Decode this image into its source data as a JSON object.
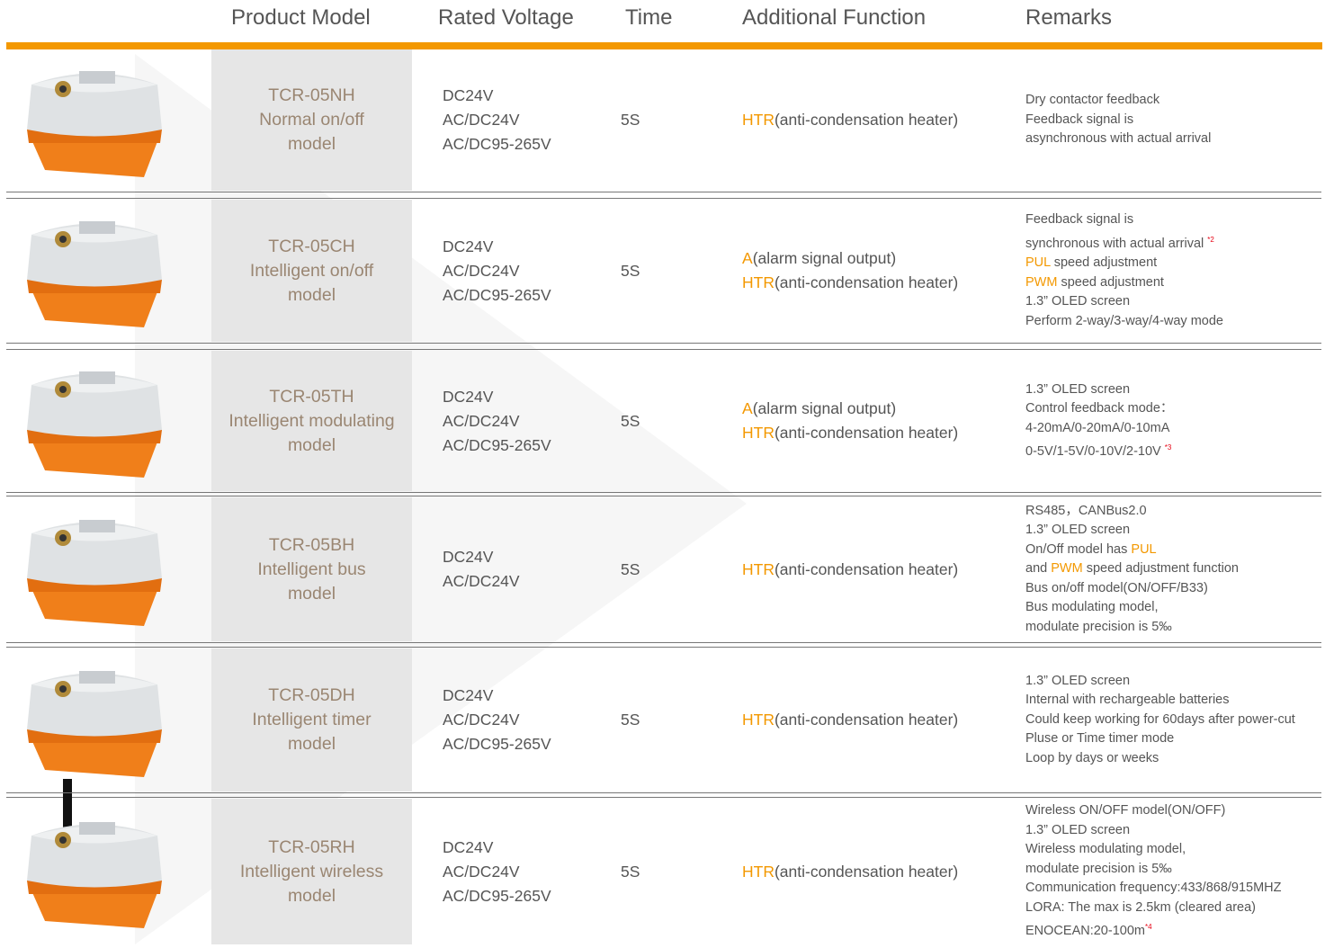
{
  "table": {
    "header": [
      "Product Model",
      "Rated Voltage",
      "Time",
      "Additional Function",
      "Remarks"
    ],
    "rows": [
      {
        "model": [
          "TCR-05NH",
          "Normal on/off",
          "model"
        ],
        "voltage": [
          "DC24V",
          "AC/DC24V",
          "AC/DC95-265V"
        ],
        "time": "5S",
        "functions": [
          [
            {
              "text": "HTR",
              "color": "#f39800"
            },
            {
              "text": "(anti-condensation heater)"
            }
          ]
        ],
        "remarks": [
          [
            {
              "text": "Dry contactor feedback"
            }
          ],
          [
            {
              "text": "Feedback signal is"
            }
          ],
          [
            {
              "text": "asynchronous with actual arrival"
            }
          ]
        ]
      },
      {
        "model": [
          "TCR-05CH",
          "Intelligent on/off",
          "model"
        ],
        "voltage": [
          "DC24V",
          "AC/DC24V",
          "AC/DC95-265V"
        ],
        "time": "5S",
        "functions": [
          [
            {
              "text": "A",
              "color": "#f39800"
            },
            {
              "text": "(alarm signal output)"
            }
          ],
          [
            {
              "text": "HTR",
              "color": "#f39800"
            },
            {
              "text": "(anti-condensation heater)"
            }
          ]
        ],
        "remarks": [
          [
            {
              "text": "Feedback signal is"
            }
          ],
          [
            {
              "text": "synchronous with actual arrival "
            },
            {
              "text": "*2",
              "color": "#e60012",
              "sup": true
            }
          ],
          [
            {
              "text": "PUL",
              "color": "#f39800"
            },
            {
              "text": " speed adjustment"
            }
          ],
          [
            {
              "text": "PWM",
              "color": "#f39800"
            },
            {
              "text": " speed adjustment"
            }
          ],
          [
            {
              "text": "1.3” OLED screen"
            }
          ],
          [
            {
              "text": "Perform 2-way/3-way/4-way mode"
            }
          ]
        ]
      },
      {
        "model": [
          "TCR-05TH",
          "Intelligent modulating",
          "model"
        ],
        "voltage": [
          "DC24V",
          "AC/DC24V",
          "AC/DC95-265V"
        ],
        "time": "5S",
        "functions": [
          [
            {
              "text": "A",
              "color": "#f39800"
            },
            {
              "text": "(alarm signal output)"
            }
          ],
          [
            {
              "text": "HTR",
              "color": "#f39800"
            },
            {
              "text": "(anti-condensation heater)"
            }
          ]
        ],
        "remarks": [
          [
            {
              "text": "1.3” OLED screen"
            }
          ],
          [
            {
              "text": "Control feedback mode："
            }
          ],
          [
            {
              "text": "4-20mA/0-20mA/0-10mA"
            }
          ],
          [
            {
              "text": "0-5V/1-5V/0-10V/2-10V "
            },
            {
              "text": "*3",
              "color": "#e60012",
              "sup": true
            }
          ]
        ]
      },
      {
        "model": [
          "TCR-05BH",
          "Intelligent bus",
          "model"
        ],
        "voltage": [
          "DC24V",
          "AC/DC24V"
        ],
        "time": "5S",
        "functions": [
          [
            {
              "text": "HTR",
              "color": "#f39800"
            },
            {
              "text": "(anti-condensation heater)"
            }
          ]
        ],
        "remarks": [
          [
            {
              "text": "RS485，CANBus2.0"
            }
          ],
          [
            {
              "text": "1.3” OLED screen"
            }
          ],
          [
            {
              "text": "On/Off model has "
            },
            {
              "text": "PUL",
              "color": "#f39800"
            }
          ],
          [
            {
              "text": "and "
            },
            {
              "text": "PWM",
              "color": "#f39800"
            },
            {
              "text": " speed adjustment function"
            }
          ],
          [
            {
              "text": "Bus on/off model(ON/OFF/B33)"
            }
          ],
          [
            {
              "text": "Bus modulating model,"
            }
          ],
          [
            {
              "text": "modulate precision is 5‰"
            }
          ]
        ]
      },
      {
        "model": [
          "TCR-05DH",
          "Intelligent timer",
          "model"
        ],
        "voltage": [
          "DC24V",
          "AC/DC24V",
          "AC/DC95-265V"
        ],
        "time": "5S",
        "functions": [
          [
            {
              "text": "HTR",
              "color": "#f39800"
            },
            {
              "text": "(anti-condensation heater)"
            }
          ]
        ],
        "remarks": [
          [
            {
              "text": "1.3” OLED screen"
            }
          ],
          [
            {
              "text": "Internal with rechargeable batteries"
            }
          ],
          [
            {
              "text": "Could keep working for 60days after power-cut"
            }
          ],
          [
            {
              "text": "Pluse or Time timer mode"
            }
          ],
          [
            {
              "text": "Loop by days or  weeks"
            }
          ]
        ]
      },
      {
        "model": [
          "TCR-05RH",
          "Intelligent wireless",
          "model"
        ],
        "voltage": [
          "DC24V",
          "AC/DC24V",
          "AC/DC95-265V"
        ],
        "time": "5S",
        "functions": [
          [
            {
              "text": "HTR",
              "color": "#f39800"
            },
            {
              "text": "(anti-condensation heater)"
            }
          ]
        ],
        "remarks": [
          [
            {
              "text": "Wireless ON/OFF model(ON/OFF)"
            }
          ],
          [
            {
              "text": "1.3” OLED screen"
            }
          ],
          [
            {
              "text": "Wireless modulating model,"
            }
          ],
          [
            {
              "text": "modulate precision is 5‰"
            }
          ],
          [
            {
              "text": "Communication frequency:433/868/915MHZ"
            }
          ],
          [
            {
              "text": "LORA: The max is 2.5km (cleared area)"
            }
          ],
          [
            {
              "text": "ENOCEAN:20-100m"
            },
            {
              "text": "*4",
              "color": "#e60012",
              "sup": true
            }
          ]
        ]
      }
    ]
  }
}
